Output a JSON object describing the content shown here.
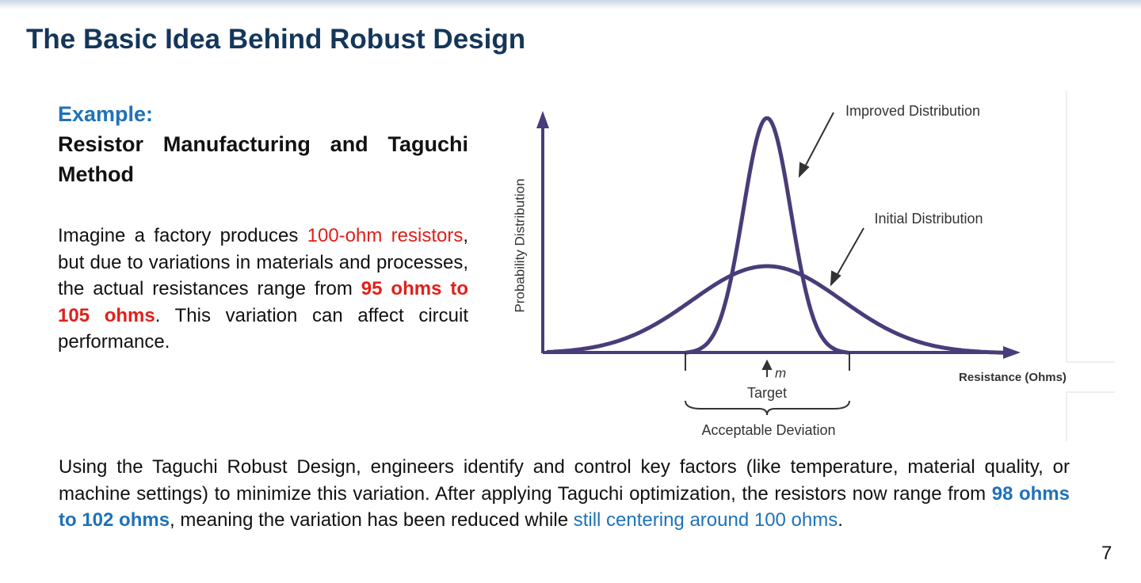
{
  "title": "The Basic Idea Behind Robust Design",
  "example": {
    "label": "Example:",
    "heading": "Resistor Manufacturing and Taguchi Method"
  },
  "paragraph1": [
    "Imagine a factory produces ",
    "100-ohm resistors",
    ", but due to variations in materials and processes, the actual resistances range from ",
    "95 ohms to 105 ohms",
    ". This variation can affect circuit performance."
  ],
  "figure": {
    "y_axis_label": "Probability Distribution",
    "x_axis_label": "Resistance (Ohms)",
    "improved_label": "Improved Distribution",
    "initial_label": "Initial Distribution",
    "mean_symbol": "m",
    "target_label": "Target",
    "deviation_label": "Acceptable Deviation"
  },
  "paragraph2": [
    "Using the Taguchi Robust Design, engineers identify and control key factors (like temperature, material quality, or machine settings) to minimize this variation. After applying Taguchi optimization, the resistors now range from ",
    "98 ohms to 102 ohms",
    ", meaning the variation has been reduced while ",
    "still centering around 100 ohms",
    "."
  ],
  "page_number": "7"
}
